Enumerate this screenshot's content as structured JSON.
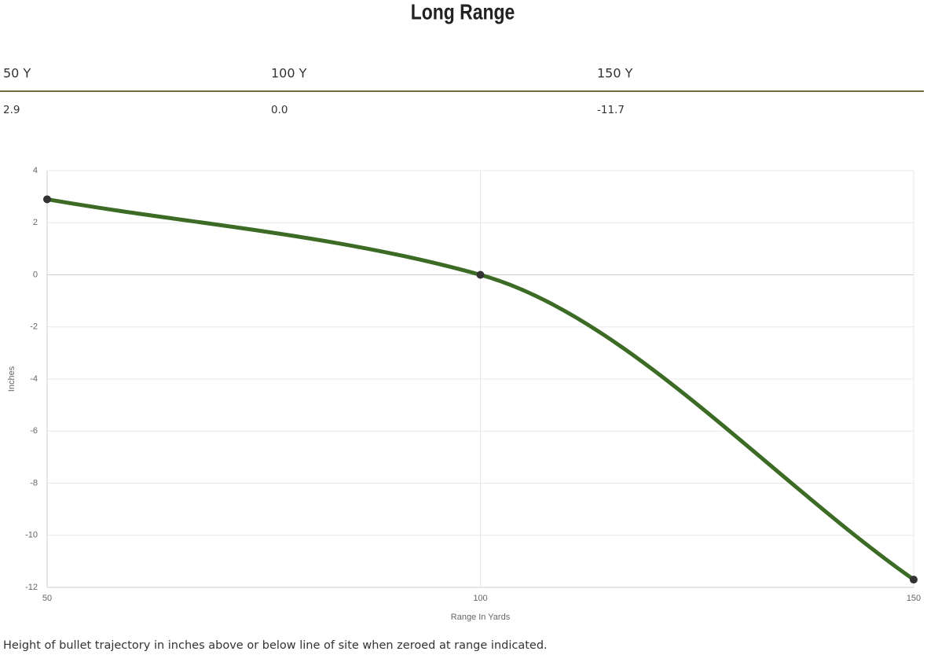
{
  "title": "Long Range",
  "table": {
    "headers": [
      "50 Y",
      "100 Y",
      "150 Y"
    ],
    "rows": [
      [
        "2.9",
        "0.0",
        "-11.7"
      ]
    ]
  },
  "chart_data": {
    "type": "line",
    "x": [
      50,
      100,
      150
    ],
    "values": [
      2.9,
      0,
      -11.7
    ],
    "color": "#3c6b25",
    "xlim": [
      50,
      150
    ],
    "xticks": [
      50,
      100,
      150
    ],
    "ylim": [
      -12,
      4
    ],
    "yticks": [
      -12,
      -10,
      -8,
      -6,
      -4,
      -2,
      0,
      2,
      4
    ],
    "x_label": "Range In Yards",
    "y_label": "Inches",
    "grid": true
  },
  "caption": "Height of bullet trajectory in inches above or below line of site when zeroed at range indicated."
}
